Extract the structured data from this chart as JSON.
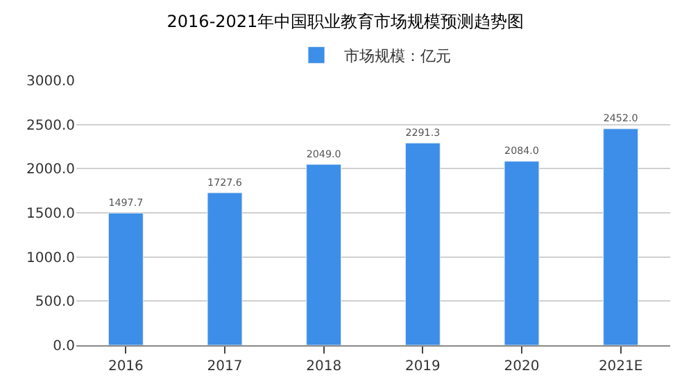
{
  "chart_data": {
    "type": "bar",
    "title": "2016-2021年中国职业教育市场规模预测趋势图",
    "categories": [
      "2016",
      "2017",
      "2018",
      "2019",
      "2020",
      "2021E"
    ],
    "series": [
      {
        "name": "市场规模：亿元",
        "color": "#3c8ee8",
        "values": [
          1497.7,
          1727.6,
          2049,
          2291.3,
          2084,
          2452
        ],
        "value_labels": [
          "1497.7",
          "1727.6",
          "2049.0",
          "2291.3",
          "2084.0",
          "2452.0"
        ]
      }
    ],
    "ylim": [
      0,
      3000
    ],
    "yticks": [
      {
        "value": 0,
        "label": "0.0"
      },
      {
        "value": 500,
        "label": "500.0"
      },
      {
        "value": 1000,
        "label": "1000.0"
      },
      {
        "value": 1500,
        "label": "1500.0"
      },
      {
        "value": 2000,
        "label": "2000.0"
      },
      {
        "value": 2500,
        "label": "2500.0"
      },
      {
        "value": 3000,
        "label": "3000.0"
      }
    ],
    "grid": "y",
    "legend": "top"
  }
}
